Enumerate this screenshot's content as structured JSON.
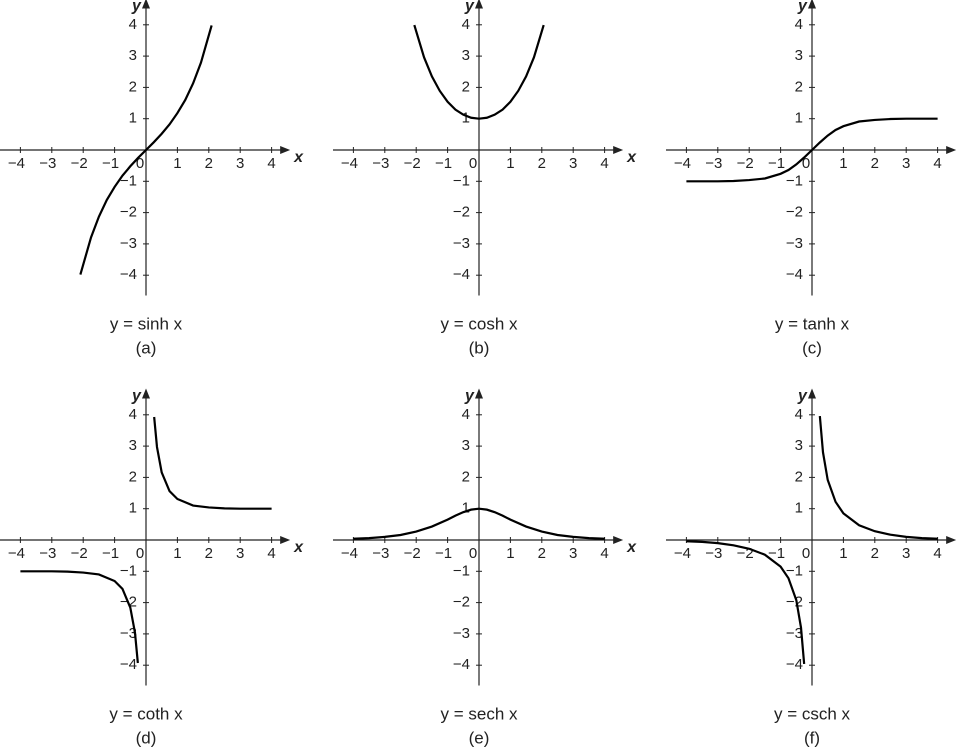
{
  "chart_data": [
    {
      "type": "line",
      "caption": "y = sinh x",
      "label": "(a)",
      "xlabel": "x",
      "ylabel": "y",
      "color": "#000000",
      "xlim": [
        -4.65,
        4.4
      ],
      "ylim": [
        -4.65,
        4.65
      ],
      "xticks": [
        {
          "value": -4,
          "label": "−4"
        },
        {
          "value": -3,
          "label": "−3"
        },
        {
          "value": -2,
          "label": "−2"
        },
        {
          "value": -1,
          "label": "−1"
        },
        0,
        1,
        2,
        3,
        4
      ],
      "yticks": [
        {
          "value": -4,
          "label": "−4"
        },
        {
          "value": -3,
          "label": "−3"
        },
        {
          "value": -2,
          "label": "−2"
        },
        {
          "value": -1,
          "label": "−1"
        },
        1,
        2,
        3,
        4
      ],
      "x": [
        -2.09,
        -1.75,
        -1.5,
        -1.25,
        -1,
        -0.75,
        -0.5,
        -0.25,
        0,
        0.25,
        0.5,
        0.75,
        1,
        1.25,
        1.5,
        1.75,
        2.09
      ],
      "values": [
        -3.98,
        -2.79,
        -2.13,
        -1.6,
        -1.18,
        -0.82,
        -0.52,
        -0.25,
        0,
        0.25,
        0.52,
        0.82,
        1.18,
        1.6,
        2.13,
        2.79,
        3.98
      ]
    },
    {
      "type": "line",
      "caption": "y = cosh x",
      "label": "(b)",
      "xlabel": "x",
      "ylabel": "y",
      "color": "#000000",
      "xlim": [
        -4.65,
        4.4
      ],
      "ylim": [
        -4.65,
        4.65
      ],
      "xticks": [
        {
          "value": -4,
          "label": "−4"
        },
        {
          "value": -3,
          "label": "−3"
        },
        {
          "value": -2,
          "label": "−2"
        },
        {
          "value": -1,
          "label": "−1"
        },
        0,
        1,
        2,
        3,
        4
      ],
      "yticks": [
        {
          "value": -4,
          "label": "−4"
        },
        {
          "value": -3,
          "label": "−3"
        },
        {
          "value": -2,
          "label": "−2"
        },
        {
          "value": -1,
          "label": "−1"
        },
        1,
        2,
        3,
        4
      ],
      "x": [
        -2.06,
        -1.75,
        -1.5,
        -1.25,
        -1,
        -0.75,
        -0.5,
        -0.25,
        0,
        0.25,
        0.5,
        0.75,
        1,
        1.25,
        1.5,
        1.75,
        2.06
      ],
      "values": [
        3.99,
        2.96,
        2.35,
        1.89,
        1.54,
        1.29,
        1.13,
        1.03,
        1,
        1.03,
        1.13,
        1.29,
        1.54,
        1.89,
        2.35,
        2.96,
        3.99
      ]
    },
    {
      "type": "line",
      "caption": "y = tanh x",
      "label": "(c)",
      "xlabel": "x",
      "ylabel": "y",
      "color": "#000000",
      "xlim": [
        -4.65,
        4.4
      ],
      "ylim": [
        -4.65,
        4.65
      ],
      "xticks": [
        {
          "value": -4,
          "label": "−4"
        },
        {
          "value": -3,
          "label": "−3"
        },
        {
          "value": -2,
          "label": "−2"
        },
        {
          "value": -1,
          "label": "−1"
        },
        0,
        1,
        2,
        3,
        4
      ],
      "yticks": [
        {
          "value": -4,
          "label": "−4"
        },
        {
          "value": -3,
          "label": "−3"
        },
        {
          "value": -2,
          "label": "−2"
        },
        {
          "value": -1,
          "label": "−1"
        },
        1,
        2,
        3,
        4
      ],
      "x": [
        -4,
        -3.5,
        -3,
        -2.5,
        -2,
        -1.5,
        -1,
        -0.75,
        -0.5,
        -0.25,
        0,
        0.25,
        0.5,
        0.75,
        1,
        1.5,
        2,
        2.5,
        3,
        3.5,
        4
      ],
      "values": [
        -1,
        -1,
        -1,
        -0.99,
        -0.96,
        -0.91,
        -0.76,
        -0.64,
        -0.46,
        -0.24,
        0,
        0.24,
        0.46,
        0.64,
        0.76,
        0.91,
        0.96,
        0.99,
        1,
        1,
        1
      ]
    },
    {
      "type": "line",
      "caption": "y = coth x",
      "label": "(d)",
      "xlabel": "x",
      "ylabel": "y",
      "color": "#000000",
      "xlim": [
        -4.65,
        4.4
      ],
      "ylim": [
        -4.65,
        4.65
      ],
      "xticks": [
        {
          "value": -4,
          "label": "−4"
        },
        {
          "value": -3,
          "label": "−3"
        },
        {
          "value": -2,
          "label": "−2"
        },
        {
          "value": -1,
          "label": "−1"
        },
        0,
        1,
        2,
        3,
        4
      ],
      "yticks": [
        {
          "value": -4,
          "label": "−4"
        },
        {
          "value": -3,
          "label": "−3"
        },
        {
          "value": -2,
          "label": "−2"
        },
        {
          "value": -1,
          "label": "−1"
        },
        1,
        2,
        3,
        4
      ],
      "x": [
        -4,
        -3,
        -2.5,
        -2,
        -1.5,
        -1,
        -0.75,
        -0.5,
        -0.35,
        -0.26,
        0,
        0.26,
        0.35,
        0.5,
        0.75,
        1,
        1.5,
        2,
        2.5,
        3,
        4
      ],
      "values": [
        -1,
        -1,
        -1.01,
        -1.04,
        -1.1,
        -1.31,
        -1.56,
        -2.16,
        -2.97,
        -3.93,
        null,
        3.93,
        2.97,
        2.16,
        1.56,
        1.31,
        1.1,
        1.04,
        1.01,
        1,
        1
      ]
    },
    {
      "type": "line",
      "caption": "y = sech x",
      "label": "(e)",
      "xlabel": "x",
      "ylabel": "y",
      "color": "#000000",
      "xlim": [
        -4.65,
        4.4
      ],
      "ylim": [
        -4.65,
        4.65
      ],
      "xticks": [
        {
          "value": -4,
          "label": "−4"
        },
        {
          "value": -3,
          "label": "−3"
        },
        {
          "value": -2,
          "label": "−2"
        },
        {
          "value": -1,
          "label": "−1"
        },
        0,
        1,
        2,
        3,
        4
      ],
      "yticks": [
        {
          "value": -4,
          "label": "−4"
        },
        {
          "value": -3,
          "label": "−3"
        },
        {
          "value": -2,
          "label": "−2"
        },
        {
          "value": -1,
          "label": "−1"
        },
        1,
        2,
        3,
        4
      ],
      "x": [
        -4,
        -3.5,
        -3,
        -2.5,
        -2,
        -1.5,
        -1,
        -0.75,
        -0.5,
        -0.25,
        0,
        0.25,
        0.5,
        0.75,
        1,
        1.5,
        2,
        2.5,
        3,
        3.5,
        4
      ],
      "values": [
        0.04,
        0.06,
        0.1,
        0.16,
        0.27,
        0.43,
        0.65,
        0.78,
        0.89,
        0.97,
        1,
        0.97,
        0.89,
        0.78,
        0.65,
        0.43,
        0.27,
        0.16,
        0.1,
        0.06,
        0.04
      ]
    },
    {
      "type": "line",
      "caption": "y = csch x",
      "label": "(f)",
      "xlabel": "x",
      "ylabel": "y",
      "color": "#000000",
      "xlim": [
        -4.65,
        4.4
      ],
      "ylim": [
        -4.65,
        4.65
      ],
      "xticks": [
        {
          "value": -4,
          "label": "−4"
        },
        {
          "value": -3,
          "label": "−3"
        },
        {
          "value": -2,
          "label": "−2"
        },
        {
          "value": -1,
          "label": "−1"
        },
        0,
        1,
        2,
        3,
        4
      ],
      "yticks": [
        {
          "value": -4,
          "label": "−4"
        },
        {
          "value": -3,
          "label": "−3"
        },
        {
          "value": -2,
          "label": "−2"
        },
        {
          "value": -1,
          "label": "−1"
        },
        1,
        2,
        3,
        4
      ],
      "x": [
        -4,
        -3.5,
        -3,
        -2.5,
        -2,
        -1.5,
        -1,
        -0.75,
        -0.5,
        -0.35,
        -0.25,
        0,
        0.25,
        0.35,
        0.5,
        0.75,
        1,
        1.5,
        2,
        2.5,
        3,
        3.5,
        4
      ],
      "values": [
        -0.04,
        -0.06,
        -0.1,
        -0.17,
        -0.28,
        -0.47,
        -0.85,
        -1.22,
        -1.92,
        -2.8,
        -3.96,
        null,
        3.96,
        2.8,
        1.92,
        1.22,
        0.85,
        0.47,
        0.28,
        0.17,
        0.1,
        0.06,
        0.04
      ]
    }
  ]
}
